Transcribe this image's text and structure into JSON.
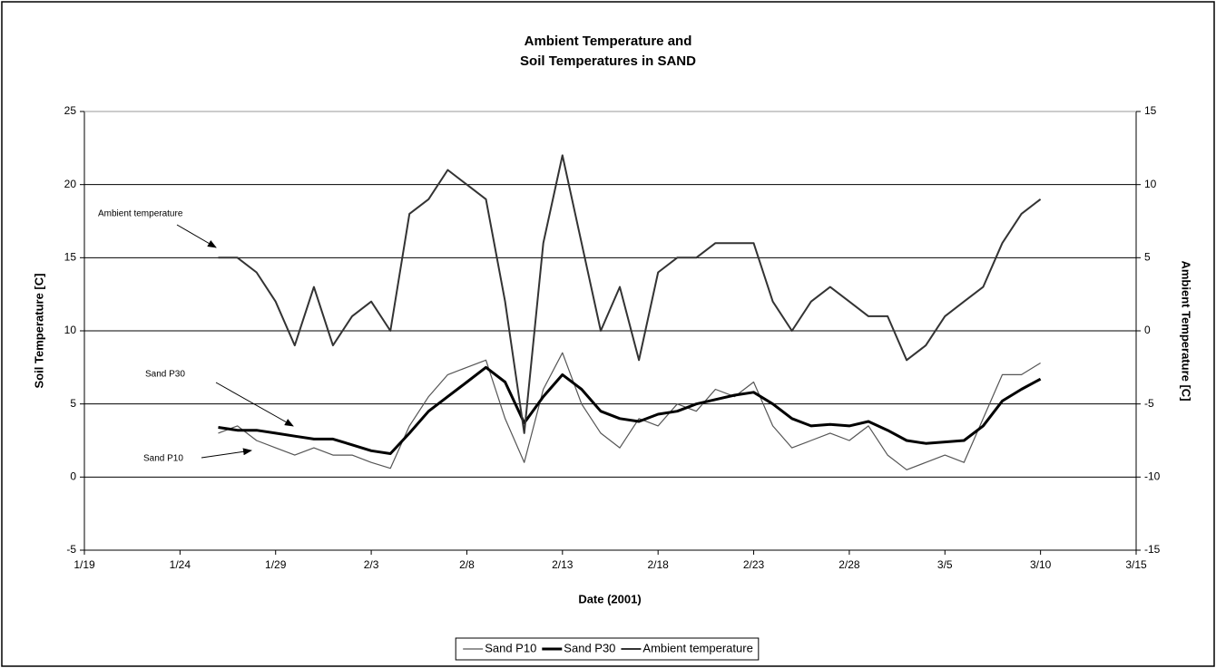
{
  "chart_data": {
    "type": "line",
    "title": [
      "Ambient Temperature and",
      "Soil Temperatures in SAND"
    ],
    "x_label": "Date (2001)",
    "y_label": "Soil Temperature [C]",
    "y2_label": "Ambient Temperature [C]",
    "x": [
      "1/26",
      "1/27",
      "1/28",
      "1/29",
      "1/30",
      "1/31",
      "2/1",
      "2/2",
      "2/3",
      "2/4",
      "2/5",
      "2/6",
      "2/7",
      "2/8",
      "2/9",
      "2/10",
      "2/11",
      "2/12",
      "2/13",
      "2/14",
      "2/15",
      "2/16",
      "2/17",
      "2/18",
      "2/19",
      "2/20",
      "2/21",
      "2/22",
      "2/23",
      "2/24",
      "2/25",
      "2/26",
      "2/27",
      "2/28",
      "3/1",
      "3/2",
      "3/3",
      "3/4",
      "3/5",
      "3/6",
      "3/7",
      "3/8",
      "3/9",
      "3/10"
    ],
    "series": [
      {
        "name": "Sand P10",
        "color": "#555555",
        "width": 1.2,
        "values": [
          3.0,
          3.5,
          2.5,
          2,
          1.5,
          2,
          1.5,
          1.5,
          1,
          0.6,
          3.5,
          5.5,
          7,
          7.5,
          8,
          4,
          1,
          6,
          8.5,
          5,
          3,
          2,
          4,
          3.5,
          5,
          4.5,
          6,
          5.5,
          6.5,
          3.5,
          2,
          2.5,
          3,
          2.5,
          3.5,
          1.5,
          0.5,
          1,
          1.5,
          1,
          4,
          7,
          7,
          7.8
        ]
      },
      {
        "name": "Sand P30",
        "color": "#000000",
        "width": 3,
        "values": [
          3.4,
          3.2,
          3.2,
          3,
          2.8,
          2.6,
          2.6,
          2.2,
          1.8,
          1.6,
          3,
          4.5,
          5.5,
          6.5,
          7.5,
          6.5,
          3.7,
          5.5,
          7,
          6,
          4.5,
          4,
          3.8,
          4.3,
          4.5,
          5,
          5.3,
          5.6,
          5.8,
          5,
          4,
          3.5,
          3.6,
          3.5,
          3.8,
          3.2,
          2.5,
          2.3,
          2.4,
          2.5,
          3.5,
          5.2,
          6,
          6.7
        ]
      },
      {
        "name": "Ambient temperature",
        "color": "#333333",
        "width": 2,
        "axis": "y2",
        "values": [
          5,
          5,
          4,
          2,
          -1,
          3,
          -1,
          1,
          2,
          0,
          8,
          9,
          11,
          10,
          9,
          2,
          -7,
          6,
          12,
          6,
          0,
          3,
          -2,
          4,
          5,
          5,
          6,
          6,
          6,
          2,
          0,
          2,
          3,
          2,
          1,
          1,
          -2,
          -1,
          1,
          2,
          3,
          6,
          8,
          9
        ]
      }
    ],
    "xlim": [
      "1/19",
      "3/15"
    ],
    "xticks": [
      "1/19",
      "1/24",
      "1/29",
      "2/3",
      "2/8",
      "2/13",
      "2/18",
      "2/23",
      "2/28",
      "3/5",
      "3/10",
      "3/15"
    ],
    "ylim": [
      -5,
      25
    ],
    "yticks": [
      -5,
      0,
      5,
      10,
      15,
      20,
      25
    ],
    "y2lim": [
      -15,
      15
    ],
    "y2ticks": [
      -15,
      -10,
      -5,
      0,
      5,
      10,
      15
    ],
    "grid": true,
    "legend": "bottom",
    "annotations": [
      {
        "text": "Ambient temperature"
      },
      {
        "text": "Sand P30"
      },
      {
        "text": "Sand P10"
      }
    ]
  }
}
